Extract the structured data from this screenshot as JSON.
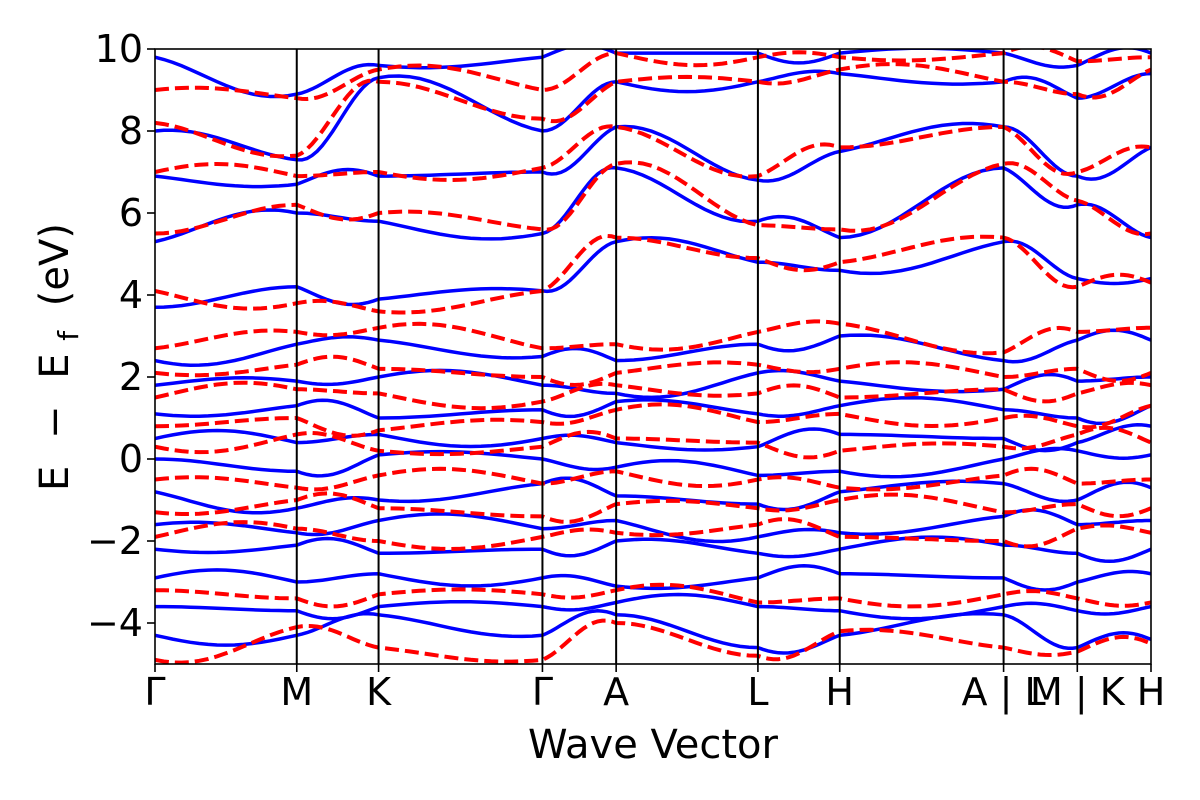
{
  "chart_data": {
    "type": "line",
    "xlabel": "Wave Vector",
    "ylabel_parts": [
      "E",
      "−",
      "E",
      "f",
      "(eV)"
    ],
    "ylim": [
      -5,
      10
    ],
    "yticks": [
      -4,
      -2,
      0,
      2,
      4,
      6,
      8,
      10
    ],
    "ytick_labels": [
      "−4",
      "−2",
      "0",
      "2",
      "4",
      "6",
      "8",
      "10"
    ],
    "kpath": [
      {
        "label": "Γ",
        "x": 0
      },
      {
        "label": "M",
        "x": 0.577
      },
      {
        "label": "K",
        "x": 0.91
      },
      {
        "label": "Γ",
        "x": 1.577
      },
      {
        "label": "A",
        "x": 1.877
      },
      {
        "label": "L",
        "x": 2.454
      },
      {
        "label": "H",
        "x": 2.787
      },
      {
        "label": "A | L",
        "x": 3.454
      },
      {
        "label": "M | K",
        "x": 3.754
      },
      {
        "label": "H",
        "x": 4.054
      }
    ],
    "segment_breaks": [
      3.454,
      3.754
    ],
    "colors": {
      "series_a": "#0000ff",
      "series_b": "#ff0000"
    },
    "series": [
      {
        "line_style": "solid",
        "color": "#0000ff",
        "bands_at_kpoints": [
          [
            -4.3,
            -4.3,
            -3.8,
            -4.3,
            -3.8,
            -4.6,
            -4.3,
            -3.8,
            -4.6,
            -4.4
          ],
          [
            -3.6,
            -3.7,
            -3.6,
            -3.6,
            -3.5,
            -3.6,
            -3.7,
            -3.6,
            -3.7,
            -3.6
          ],
          [
            -2.9,
            -3.0,
            -2.8,
            -2.9,
            -3.1,
            -2.9,
            -2.8,
            -2.9,
            -3.0,
            -2.8
          ],
          [
            -2.2,
            -2.1,
            -2.3,
            -2.2,
            -2.0,
            -2.3,
            -2.2,
            -2.1,
            -2.3,
            -2.2
          ],
          [
            -1.6,
            -1.8,
            -1.5,
            -1.7,
            -1.5,
            -1.9,
            -1.8,
            -1.4,
            -1.6,
            -1.5
          ],
          [
            -0.8,
            -1.2,
            -1.0,
            -0.6,
            -0.9,
            -1.1,
            -0.8,
            -0.6,
            -1.0,
            -0.7
          ],
          [
            0.0,
            -0.3,
            0.1,
            0.0,
            -0.2,
            -0.4,
            -0.3,
            0.0,
            0.2,
            0.1
          ],
          [
            0.5,
            0.4,
            0.6,
            0.5,
            0.4,
            0.3,
            0.6,
            0.5,
            0.4,
            0.8
          ],
          [
            1.1,
            1.3,
            1.0,
            1.2,
            1.4,
            1.1,
            1.3,
            1.2,
            1.0,
            1.3
          ],
          [
            1.8,
            1.9,
            2.0,
            1.8,
            1.6,
            2.1,
            1.9,
            1.7,
            1.9,
            2.0
          ],
          [
            2.4,
            2.8,
            2.9,
            2.5,
            2.4,
            2.8,
            3.0,
            2.4,
            2.9,
            2.9
          ],
          [
            3.7,
            4.2,
            3.9,
            4.1,
            5.3,
            4.8,
            4.6,
            5.3,
            4.4,
            4.4
          ],
          [
            5.3,
            6.0,
            5.8,
            5.5,
            7.1,
            5.8,
            5.4,
            7.1,
            6.2,
            5.4
          ],
          [
            6.9,
            6.7,
            6.9,
            7.0,
            8.1,
            6.8,
            7.5,
            8.1,
            6.9,
            7.6
          ],
          [
            8.0,
            7.3,
            9.3,
            8.0,
            9.2,
            9.2,
            9.4,
            9.2,
            8.8,
            9.4
          ],
          [
            9.8,
            8.9,
            9.6,
            9.8,
            9.9,
            9.9,
            9.9,
            9.9,
            9.6,
            9.9
          ]
        ]
      },
      {
        "line_style": "dashed",
        "color": "#ff0000",
        "bands_at_kpoints": [
          [
            -4.9,
            -4.1,
            -4.6,
            -4.9,
            -4.0,
            -4.8,
            -4.2,
            -4.6,
            -4.7,
            -4.5
          ],
          [
            -3.2,
            -3.4,
            -3.3,
            -3.3,
            -3.2,
            -3.5,
            -3.4,
            -3.3,
            -3.4,
            -3.5
          ],
          [
            -1.9,
            -1.7,
            -2.0,
            -1.9,
            -1.8,
            -1.6,
            -1.9,
            -2.0,
            -1.7,
            -1.8
          ],
          [
            -1.3,
            -1.0,
            -1.2,
            -1.4,
            -1.1,
            -1.2,
            -1.0,
            -1.3,
            -1.1,
            -1.2
          ],
          [
            -0.5,
            -0.7,
            -0.4,
            -0.6,
            -0.3,
            -0.5,
            -0.7,
            -0.4,
            -0.6,
            -0.5
          ],
          [
            0.3,
            0.6,
            0.2,
            0.3,
            0.5,
            0.4,
            0.2,
            0.3,
            0.6,
            0.4
          ],
          [
            0.8,
            1.0,
            0.7,
            0.9,
            1.2,
            0.9,
            1.1,
            1.0,
            0.8,
            1.3
          ],
          [
            1.5,
            1.7,
            1.6,
            1.4,
            1.8,
            1.6,
            1.5,
            1.7,
            1.6,
            1.8
          ],
          [
            2.1,
            2.3,
            2.2,
            2.0,
            2.1,
            2.3,
            2.2,
            2.0,
            2.2,
            2.1
          ],
          [
            2.7,
            3.1,
            3.2,
            2.7,
            2.8,
            3.1,
            3.3,
            2.6,
            3.1,
            3.2
          ],
          [
            4.1,
            3.8,
            3.6,
            4.1,
            5.4,
            4.9,
            4.8,
            5.4,
            4.2,
            4.3
          ],
          [
            5.5,
            6.2,
            6.0,
            5.6,
            7.2,
            5.7,
            5.6,
            7.2,
            6.3,
            5.5
          ],
          [
            7.0,
            6.9,
            7.0,
            7.1,
            8.1,
            6.9,
            7.6,
            8.1,
            7.0,
            7.6
          ],
          [
            8.2,
            7.4,
            9.2,
            8.3,
            9.2,
            9.2,
            9.5,
            9.2,
            8.9,
            9.5
          ],
          [
            9.0,
            8.8,
            9.5,
            9.0,
            9.9,
            9.8,
            9.8,
            9.9,
            9.7,
            9.8
          ]
        ]
      }
    ]
  }
}
